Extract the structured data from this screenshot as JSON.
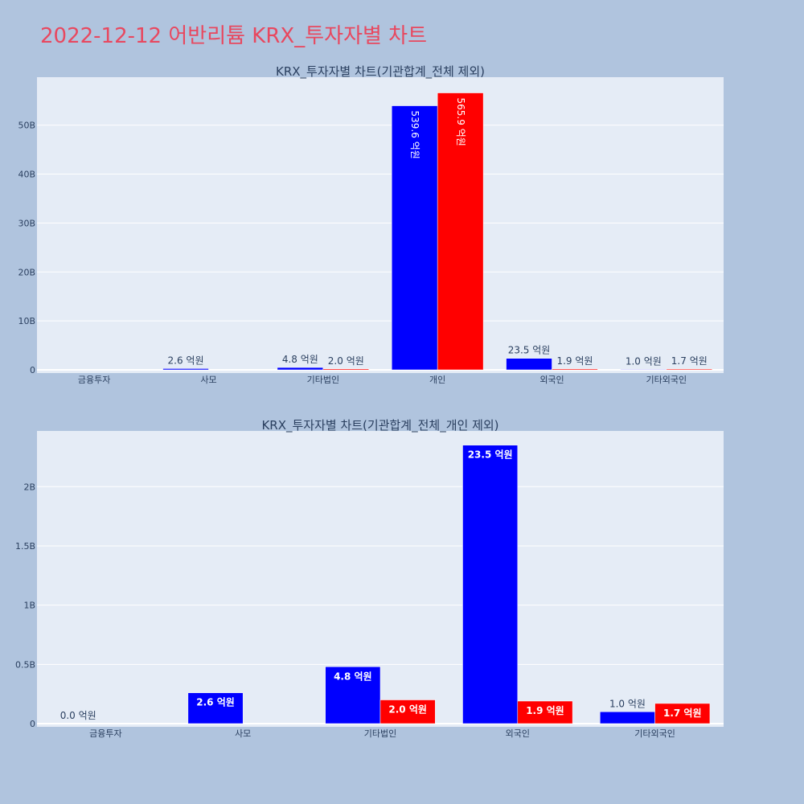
{
  "title": "2022-12-12 어반리튬 KRX_투자자별 차트",
  "chart_data": [
    {
      "type": "bar",
      "title": "KRX_투자자별 차트(기관합계_전체 제외)",
      "categories": [
        "금융투자",
        "사모",
        "기타법인",
        "개인",
        "외국인",
        "기타외국인"
      ],
      "series": [
        {
          "color": "#0000ff",
          "values": [
            0,
            0.26,
            0.48,
            53.96,
            2.35,
            0.1
          ],
          "labels": [
            "",
            "2.6 억원",
            "4.8 억원",
            "539.6 억원",
            "23.5 억원",
            "1.0 억원"
          ]
        },
        {
          "color": "#ff0000",
          "values": [
            0,
            0,
            0.2,
            56.59,
            0.19,
            0.17
          ],
          "labels": [
            "",
            "",
            "2.0 억원",
            "565.9 억원",
            "1.9 억원",
            "1.7 억원"
          ]
        }
      ],
      "ylim": [
        0,
        59.8
      ],
      "yticks": [
        0,
        10,
        20,
        30,
        40,
        50
      ],
      "ytick_labels": [
        "0",
        "10B",
        "20B",
        "30B",
        "40B",
        "50B"
      ],
      "y_unit": "B",
      "grid": true,
      "legend": "none"
    },
    {
      "type": "bar",
      "title": "KRX_투자자별 차트(기관합계_전체_개인 제외)",
      "categories": [
        "금융투자",
        "사모",
        "기타법인",
        "외국인",
        "기타외국인"
      ],
      "series": [
        {
          "color": "#0000ff",
          "values": [
            0,
            0.26,
            0.48,
            2.35,
            0.1
          ],
          "labels": [
            "0.0 억원",
            "2.6 억원",
            "4.8 억원",
            "23.5 억원",
            "1.0 억원"
          ]
        },
        {
          "color": "#ff0000",
          "values": [
            0,
            0,
            0.2,
            0.19,
            0.17
          ],
          "labels": [
            "",
            "",
            "2.0 억원",
            "1.9 억원",
            "1.7 억원"
          ]
        }
      ],
      "ylim": [
        0,
        2.47
      ],
      "yticks": [
        0,
        0.5,
        1,
        1.5,
        2
      ],
      "ytick_labels": [
        "0",
        "0.5B",
        "1B",
        "1.5B",
        "2B"
      ],
      "y_unit": "B",
      "grid": true,
      "legend": "none"
    }
  ]
}
